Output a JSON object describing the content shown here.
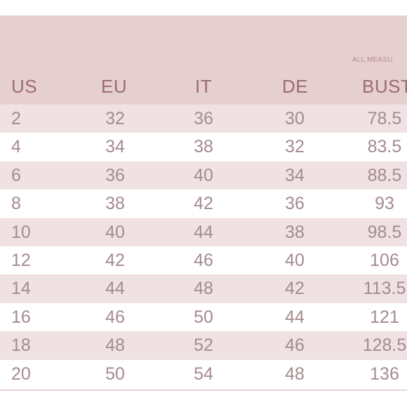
{
  "header": {
    "note": "ALL MEASU",
    "columns": [
      "US",
      "EU",
      "IT",
      "DE",
      "BUST"
    ]
  },
  "rows": [
    [
      "2",
      "32",
      "36",
      "30",
      "78.5"
    ],
    [
      "4",
      "34",
      "38",
      "32",
      "83.5"
    ],
    [
      "6",
      "36",
      "40",
      "34",
      "88.5"
    ],
    [
      "8",
      "38",
      "42",
      "36",
      "93"
    ],
    [
      "10",
      "40",
      "44",
      "38",
      "98.5"
    ],
    [
      "12",
      "42",
      "46",
      "40",
      "106"
    ],
    [
      "14",
      "44",
      "48",
      "42",
      "113.5"
    ],
    [
      "16",
      "46",
      "50",
      "44",
      "121"
    ],
    [
      "18",
      "48",
      "52",
      "46",
      "128.5"
    ],
    [
      "20",
      "50",
      "54",
      "48",
      "136"
    ]
  ],
  "colors": {
    "header_bg": "#e6cfd1",
    "odd_row_bg": "#f0e2e3",
    "text_header": "#9a6c72",
    "text_body": "#a58b8f"
  }
}
